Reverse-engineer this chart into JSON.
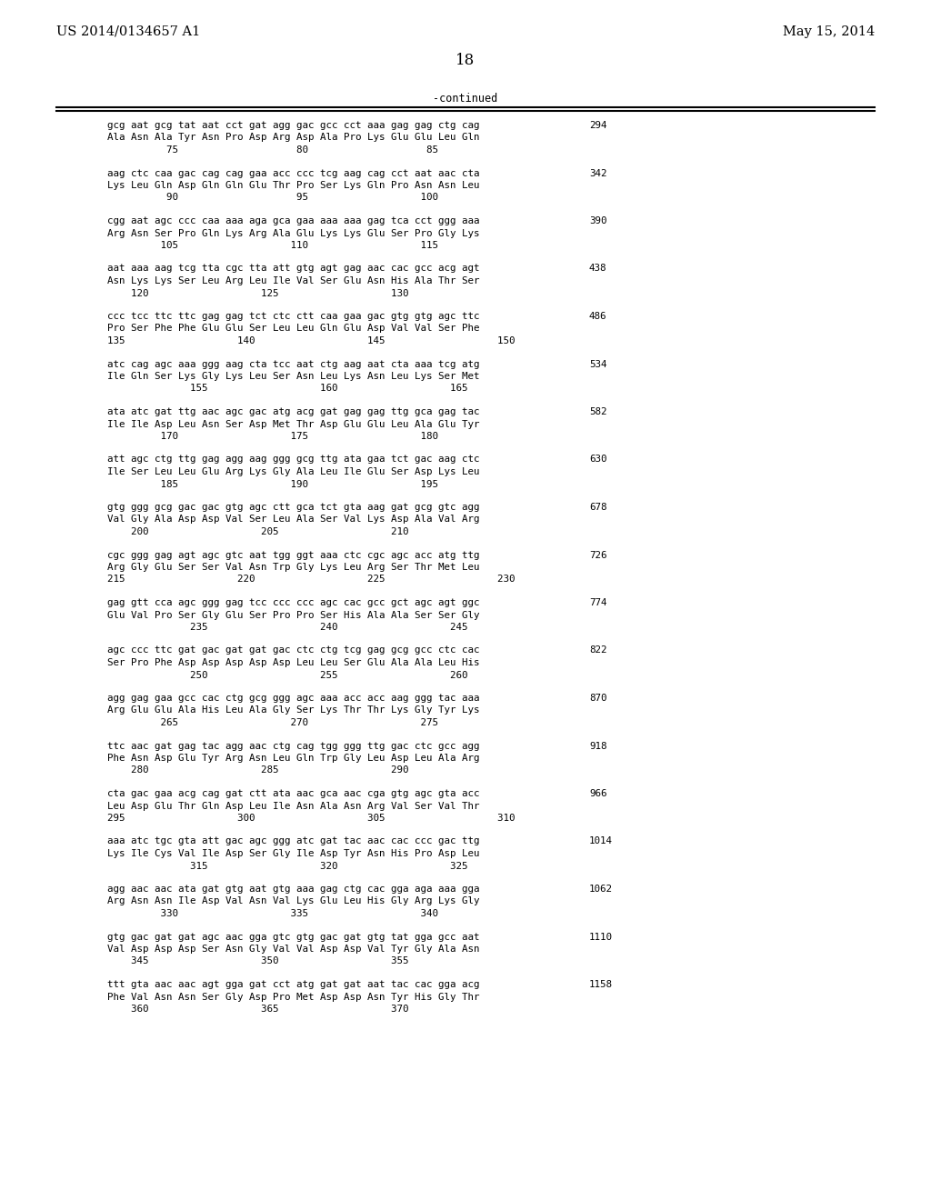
{
  "header_left": "US 2014/0134657 A1",
  "header_right": "May 15, 2014",
  "page_number": "18",
  "continued_label": "-continued",
  "background_color": "#ffffff",
  "text_color": "#000000",
  "sequences": [
    {
      "dna": "gcg aat gcg tat aat cct gat agg gac gcc cct aaa gag gag ctg cag",
      "aa": "Ala Asn Ala Tyr Asn Pro Asp Arg Asp Ala Pro Lys Glu Glu Leu Gln",
      "nums": "          75                    80                    85",
      "right_num": "294"
    },
    {
      "dna": "aag ctc caa gac cag cag gaa acc ccc tcg aag cag cct aat aac cta",
      "aa": "Lys Leu Gln Asp Gln Gln Glu Thr Pro Ser Lys Gln Pro Asn Asn Leu",
      "nums": "          90                    95                   100",
      "right_num": "342"
    },
    {
      "dna": "cgg aat agc ccc caa aaa aga gca gaa aaa aaa gag tca cct ggg aaa",
      "aa": "Arg Asn Ser Pro Gln Lys Arg Ala Glu Lys Lys Glu Ser Pro Gly Lys",
      "nums": "         105                   110                   115",
      "right_num": "390"
    },
    {
      "dna": "aat aaa aag tcg tta cgc tta att gtg agt gag aac cac gcc acg agt",
      "aa": "Asn Lys Lys Ser Leu Arg Leu Ile Val Ser Glu Asn His Ala Thr Ser",
      "nums": "    120                   125                   130",
      "right_num": "438"
    },
    {
      "dna": "ccc tcc ttc ttc gag gag tct ctc ctt caa gaa gac gtg gtg agc ttc",
      "aa": "Pro Ser Phe Phe Glu Glu Ser Leu Leu Gln Glu Asp Val Val Ser Phe",
      "nums": "135                   140                   145                   150",
      "right_num": "486"
    },
    {
      "dna": "atc cag agc aaa ggg aag cta tcc aat ctg aag aat cta aaa tcg atg",
      "aa": "Ile Gln Ser Lys Gly Lys Leu Ser Asn Leu Lys Asn Leu Lys Ser Met",
      "nums": "              155                   160                   165",
      "right_num": "534"
    },
    {
      "dna": "ata atc gat ttg aac agc gac atg acg gat gag gag ttg gca gag tac",
      "aa": "Ile Ile Asp Leu Asn Ser Asp Met Thr Asp Glu Glu Leu Ala Glu Tyr",
      "nums": "         170                   175                   180",
      "right_num": "582"
    },
    {
      "dna": "att agc ctg ttg gag agg aag ggg gcg ttg ata gaa tct gac aag ctc",
      "aa": "Ile Ser Leu Leu Glu Arg Lys Gly Ala Leu Ile Glu Ser Asp Lys Leu",
      "nums": "         185                   190                   195",
      "right_num": "630"
    },
    {
      "dna": "gtg ggg gcg gac gac gtg agc ctt gca tct gta aag gat gcg gtc agg",
      "aa": "Val Gly Ala Asp Asp Val Ser Leu Ala Ser Val Lys Asp Ala Val Arg",
      "nums": "    200                   205                   210",
      "right_num": "678"
    },
    {
      "dna": "cgc ggg gag agt agc gtc aat tgg ggt aaa ctc cgc agc acc atg ttg",
      "aa": "Arg Gly Glu Ser Ser Val Asn Trp Gly Lys Leu Arg Ser Thr Met Leu",
      "nums": "215                   220                   225                   230",
      "right_num": "726"
    },
    {
      "dna": "gag gtt cca agc ggg gag tcc ccc ccc agc cac gcc gct agc agt ggc",
      "aa": "Glu Val Pro Ser Gly Glu Ser Pro Pro Ser His Ala Ala Ser Ser Gly",
      "nums": "              235                   240                   245",
      "right_num": "774"
    },
    {
      "dna": "agc ccc ttc gat gac gat gat gac ctc ctg tcg gag gcg gcc ctc cac",
      "aa": "Ser Pro Phe Asp Asp Asp Asp Asp Leu Leu Ser Glu Ala Ala Leu His",
      "nums": "              250                   255                   260",
      "right_num": "822"
    },
    {
      "dna": "agg gag gaa gcc cac ctg gcg ggg agc aaa acc acc aag ggg tac aaa",
      "aa": "Arg Glu Glu Ala His Leu Ala Gly Ser Lys Thr Thr Lys Gly Tyr Lys",
      "nums": "         265                   270                   275",
      "right_num": "870"
    },
    {
      "dna": "ttc aac gat gag tac agg aac ctg cag tgg ggg ttg gac ctc gcc agg",
      "aa": "Phe Asn Asp Glu Tyr Arg Asn Leu Gln Trp Gly Leu Asp Leu Ala Arg",
      "nums": "    280                   285                   290",
      "right_num": "918"
    },
    {
      "dna": "cta gac gaa acg cag gat ctt ata aac gca aac cga gtg agc gta acc",
      "aa": "Leu Asp Glu Thr Gln Asp Leu Ile Asn Ala Asn Arg Val Ser Val Thr",
      "nums": "295                   300                   305                   310",
      "right_num": "966"
    },
    {
      "dna": "aaa atc tgc gta att gac agc ggg atc gat tac aac cac ccc gac ttg",
      "aa": "Lys Ile Cys Val Ile Asp Ser Gly Ile Asp Tyr Asn His Pro Asp Leu",
      "nums": "              315                   320                   325",
      "right_num": "1014"
    },
    {
      "dna": "agg aac aac ata gat gtg aat gtg aaa gag ctg cac gga aga aaa gga",
      "aa": "Arg Asn Asn Ile Asp Val Asn Val Lys Glu Leu His Gly Arg Lys Gly",
      "nums": "         330                   335                   340",
      "right_num": "1062"
    },
    {
      "dna": "gtg gac gat gat agc aac gga gtc gtg gac gat gtg tat gga gcc aat",
      "aa": "Val Asp Asp Asp Ser Asn Gly Val Val Asp Asp Val Tyr Gly Ala Asn",
      "nums": "    345                   350                   355",
      "right_num": "1110"
    },
    {
      "dna": "ttt gta aac aac agt gga gat cct atg gat gat aat tac cac gga acg",
      "aa": "Phe Val Asn Asn Ser Gly Asp Pro Met Asp Asp Asn Tyr His Gly Thr",
      "nums": "    360                   365                   370",
      "right_num": "1158"
    }
  ]
}
